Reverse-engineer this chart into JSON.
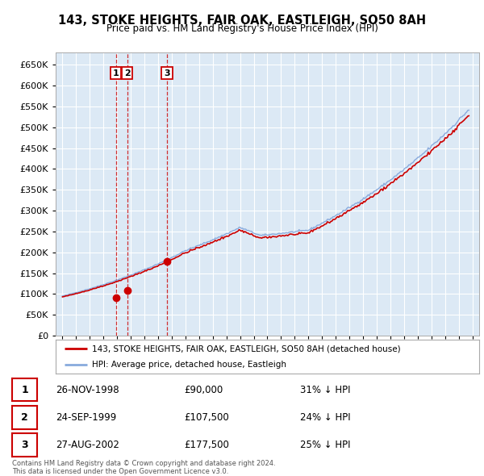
{
  "title": "143, STOKE HEIGHTS, FAIR OAK, EASTLEIGH, SO50 8AH",
  "subtitle": "Price paid vs. HM Land Registry's House Price Index (HPI)",
  "plot_bg": "#dce9f5",
  "grid_color": "#ffffff",
  "sales": [
    {
      "date_num": 1998.9,
      "price": 90000,
      "label": "1"
    },
    {
      "date_num": 1999.73,
      "price": 107500,
      "label": "2"
    },
    {
      "date_num": 2002.65,
      "price": 177500,
      "label": "3"
    }
  ],
  "table_rows": [
    {
      "num": "1",
      "date": "26-NOV-1998",
      "price": "£90,000",
      "note": "31% ↓ HPI"
    },
    {
      "num": "2",
      "date": "24-SEP-1999",
      "price": "£107,500",
      "note": "24% ↓ HPI"
    },
    {
      "num": "3",
      "date": "27-AUG-2002",
      "price": "£177,500",
      "note": "25% ↓ HPI"
    }
  ],
  "legend_property": "143, STOKE HEIGHTS, FAIR OAK, EASTLEIGH, SO50 8AH (detached house)",
  "legend_hpi": "HPI: Average price, detached house, Eastleigh",
  "footer": "Contains HM Land Registry data © Crown copyright and database right 2024.\nThis data is licensed under the Open Government Licence v3.0.",
  "xlim": [
    1994.5,
    2025.5
  ],
  "ylim": [
    0,
    680000
  ],
  "yticks": [
    0,
    50000,
    100000,
    150000,
    200000,
    250000,
    300000,
    350000,
    400000,
    450000,
    500000,
    550000,
    600000,
    650000
  ],
  "red_line_color": "#cc0000",
  "blue_line_color": "#88aadd",
  "marker_color": "#cc0000"
}
